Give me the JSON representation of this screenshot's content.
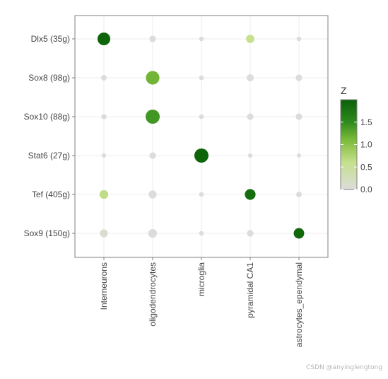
{
  "chart_data": {
    "type": "scatter",
    "subtype": "dot-plot",
    "x_categories": [
      "Interneurons",
      "oligodendrocytes",
      "microglia",
      "pyramidal CA1",
      "astrocytes_ependymal"
    ],
    "y_categories": [
      "Dlx5 (35g)",
      "Sox8 (98g)",
      "Sox10 (88g)",
      "Stat6 (27g)",
      "Tef (405g)",
      "Sox9 (150g)"
    ],
    "color_scale": {
      "title": "Z",
      "min": 0.0,
      "max": 2.0,
      "ticks": [
        0.0,
        0.5,
        1.0,
        1.5
      ],
      "tick_labels": [
        "0.0",
        "0.5",
        "1.0",
        "1.5"
      ],
      "stops": [
        {
          "value": 0.0,
          "color": "#dcdcdc"
        },
        {
          "value": 0.6,
          "color": "#c6e08e"
        },
        {
          "value": 1.1,
          "color": "#7cbb3a"
        },
        {
          "value": 1.5,
          "color": "#2f8a1d"
        },
        {
          "value": 2.0,
          "color": "#0a6007"
        }
      ]
    },
    "size_note": "dot size encodes relative magnitude (0-1)",
    "points": [
      {
        "x": "Interneurons",
        "y": "Dlx5 (35g)",
        "z": 1.95,
        "size": 0.88
      },
      {
        "x": "oligodendrocytes",
        "y": "Dlx5 (35g)",
        "z": 0.0,
        "size": 0.33
      },
      {
        "x": "microglia",
        "y": "Dlx5 (35g)",
        "z": 0.0,
        "size": 0.16
      },
      {
        "x": "pyramidal CA1",
        "y": "Dlx5 (35g)",
        "z": 0.6,
        "size": 0.48
      },
      {
        "x": "astrocytes_ependymal",
        "y": "Dlx5 (35g)",
        "z": 0.0,
        "size": 0.16
      },
      {
        "x": "Interneurons",
        "y": "Sox8 (98g)",
        "z": 0.0,
        "size": 0.25
      },
      {
        "x": "oligodendrocytes",
        "y": "Sox8 (98g)",
        "z": 1.15,
        "size": 0.95
      },
      {
        "x": "microglia",
        "y": "Sox8 (98g)",
        "z": 0.0,
        "size": 0.16
      },
      {
        "x": "pyramidal CA1",
        "y": "Sox8 (98g)",
        "z": 0.0,
        "size": 0.38
      },
      {
        "x": "astrocytes_ependymal",
        "y": "Sox8 (98g)",
        "z": 0.0,
        "size": 0.33
      },
      {
        "x": "Interneurons",
        "y": "Sox10 (88g)",
        "z": 0.0,
        "size": 0.22
      },
      {
        "x": "oligodendrocytes",
        "y": "Sox10 (88g)",
        "z": 1.4,
        "size": 1.0
      },
      {
        "x": "microglia",
        "y": "Sox10 (88g)",
        "z": 0.0,
        "size": 0.16
      },
      {
        "x": "pyramidal CA1",
        "y": "Sox10 (88g)",
        "z": 0.0,
        "size": 0.33
      },
      {
        "x": "astrocytes_ependymal",
        "y": "Sox10 (88g)",
        "z": 0.0,
        "size": 0.33
      },
      {
        "x": "Interneurons",
        "y": "Stat6 (27g)",
        "z": 0.0,
        "size": 0.14
      },
      {
        "x": "oligodendrocytes",
        "y": "Stat6 (27g)",
        "z": 0.0,
        "size": 0.33
      },
      {
        "x": "microglia",
        "y": "Stat6 (27g)",
        "z": 1.95,
        "size": 1.0
      },
      {
        "x": "pyramidal CA1",
        "y": "Stat6 (27g)",
        "z": 0.0,
        "size": 0.14
      },
      {
        "x": "astrocytes_ependymal",
        "y": "Stat6 (27g)",
        "z": 0.0,
        "size": 0.12
      },
      {
        "x": "Interneurons",
        "y": "Tef (405g)",
        "z": 0.65,
        "size": 0.52
      },
      {
        "x": "oligodendrocytes",
        "y": "Tef (405g)",
        "z": 0.0,
        "size": 0.45
      },
      {
        "x": "microglia",
        "y": "Tef (405g)",
        "z": 0.0,
        "size": 0.16
      },
      {
        "x": "pyramidal CA1",
        "y": "Tef (405g)",
        "z": 1.85,
        "size": 0.7
      },
      {
        "x": "astrocytes_ependymal",
        "y": "Tef (405g)",
        "z": 0.0,
        "size": 0.25
      },
      {
        "x": "Interneurons",
        "y": "Sox9 (150g)",
        "z": 0.1,
        "size": 0.45
      },
      {
        "x": "oligodendrocytes",
        "y": "Sox9 (150g)",
        "z": 0.0,
        "size": 0.52
      },
      {
        "x": "microglia",
        "y": "Sox9 (150g)",
        "z": 0.0,
        "size": 0.16
      },
      {
        "x": "pyramidal CA1",
        "y": "Sox9 (150g)",
        "z": 0.0,
        "size": 0.33
      },
      {
        "x": "astrocytes_ependymal",
        "y": "Sox9 (150g)",
        "z": 1.9,
        "size": 0.68
      }
    ],
    "grid": true,
    "legend": "right",
    "xlabel": "",
    "ylabel": "",
    "title": ""
  },
  "watermark": "CSDN @anyinglengtong",
  "colors": {
    "panel_border": "#7f7f7f",
    "gridline": "#ececec",
    "tick_text": "#444444"
  }
}
